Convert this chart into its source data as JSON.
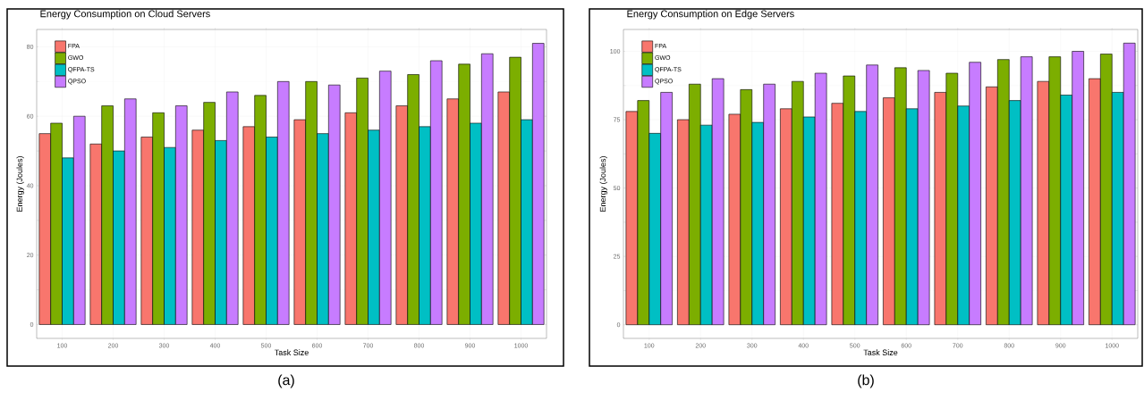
{
  "chart_data": [
    {
      "type": "bar",
      "title": "Energy Consumption on Cloud Servers",
      "xlabel": "Task Size",
      "ylabel": "Energy (Joules)",
      "categories": [
        "100",
        "200",
        "300",
        "400",
        "500",
        "600",
        "700",
        "800",
        "900",
        "1000"
      ],
      "series": [
        {
          "name": "FPA",
          "color": "#f8766d",
          "values": [
            55,
            52,
            54,
            56,
            57,
            59,
            61,
            63,
            65,
            67
          ]
        },
        {
          "name": "GWO",
          "color": "#7cae00",
          "values": [
            58,
            63,
            61,
            64,
            66,
            70,
            71,
            72,
            75,
            77
          ]
        },
        {
          "name": "QFPA-TS",
          "color": "#00bfc4",
          "values": [
            48,
            50,
            51,
            53,
            54,
            55,
            56,
            57,
            58,
            59
          ]
        },
        {
          "name": "QPSO",
          "color": "#c77cff",
          "values": [
            60,
            65,
            63,
            67,
            70,
            69,
            73,
            76,
            78,
            81
          ]
        }
      ],
      "ylim": [
        -4,
        85
      ],
      "yticks": [
        0,
        20,
        40,
        60,
        80
      ],
      "grid": true,
      "legend": "top left",
      "annotations": [
        "(a)"
      ]
    },
    {
      "type": "bar",
      "title": "Energy Consumption on Edge Servers",
      "xlabel": "Task Size",
      "ylabel": "Energy (Joules)",
      "categories": [
        "100",
        "200",
        "300",
        "400",
        "500",
        "600",
        "700",
        "800",
        "900",
        "1000"
      ],
      "series": [
        {
          "name": "FPA",
          "color": "#f8766d",
          "values": [
            78,
            75,
            77,
            79,
            81,
            83,
            85,
            87,
            89,
            90
          ]
        },
        {
          "name": "GWO",
          "color": "#7cae00",
          "values": [
            82,
            88,
            86,
            89,
            91,
            94,
            92,
            97,
            98,
            99
          ]
        },
        {
          "name": "QFPA-TS",
          "color": "#00bfc4",
          "values": [
            70,
            73,
            74,
            76,
            78,
            79,
            80,
            82,
            84,
            85
          ]
        },
        {
          "name": "QPSO",
          "color": "#c77cff",
          "values": [
            85,
            90,
            88,
            92,
            95,
            93,
            96,
            98,
            100,
            103
          ]
        }
      ],
      "ylim": [
        -5,
        108
      ],
      "yticks": [
        0,
        25,
        50,
        75,
        100
      ],
      "grid": true,
      "legend": "top left",
      "annotations": [
        "(b)"
      ]
    }
  ]
}
